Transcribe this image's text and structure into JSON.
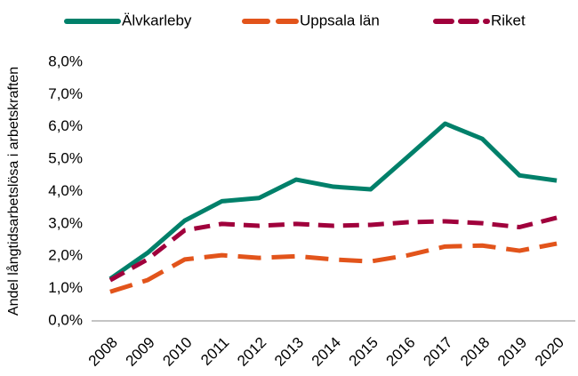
{
  "chart_data": {
    "type": "line",
    "y_label": "Andel långtidsarbetslösa i arbetskraften",
    "categories": [
      "2008",
      "2009",
      "2010",
      "2011",
      "2012",
      "2013",
      "2014",
      "2015",
      "2016",
      "2017",
      "2018",
      "2019",
      "2020"
    ],
    "series": [
      {
        "name": "Älvkarleby",
        "color": "#00806a",
        "values": [
          1.3,
          2.1,
          3.1,
          3.7,
          3.8,
          4.37,
          4.15,
          4.07,
          5.08,
          6.1,
          5.63,
          4.5,
          4.34
        ]
      },
      {
        "name": "Uppsala län",
        "color": "#e2541b",
        "values": [
          0.9,
          1.26,
          1.9,
          2.03,
          1.95,
          2.0,
          1.9,
          1.84,
          2.03,
          2.3,
          2.33,
          2.17,
          2.39
        ]
      },
      {
        "name": "Riket",
        "color": "#a0003c",
        "values": [
          1.26,
          1.9,
          2.8,
          3.0,
          2.94,
          3.0,
          2.94,
          2.97,
          3.05,
          3.08,
          3.02,
          2.9,
          3.19
        ]
      }
    ],
    "ylim": [
      0,
      8
    ],
    "yticks": [
      {
        "value": 0,
        "label": "0,0%"
      },
      {
        "value": 1,
        "label": "1,0%"
      },
      {
        "value": 2,
        "label": "2,0%"
      },
      {
        "value": 3,
        "label": "3,0%"
      },
      {
        "value": 4,
        "label": "4,0%"
      },
      {
        "value": 5,
        "label": "5,0%"
      },
      {
        "value": 6,
        "label": "6,0%"
      },
      {
        "value": 7,
        "label": "7,0%"
      },
      {
        "value": 8,
        "label": "8,0%"
      }
    ],
    "grid": false,
    "legend": "top"
  }
}
